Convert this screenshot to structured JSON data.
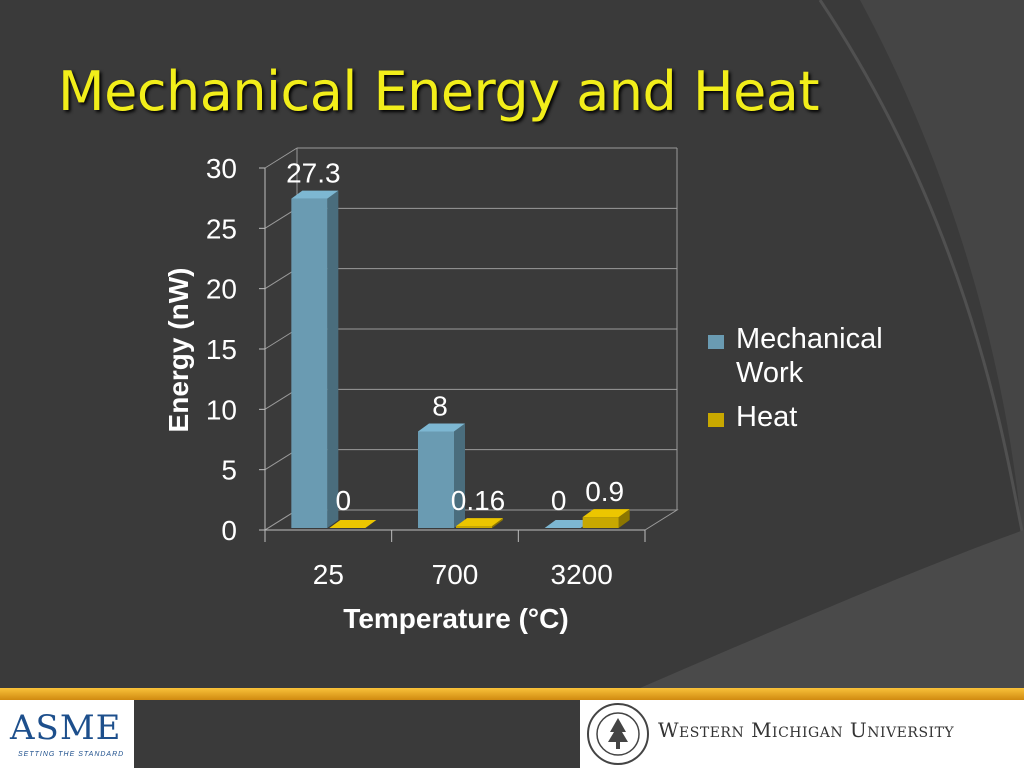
{
  "slide": {
    "title": "Mechanical Energy and Heat"
  },
  "colors": {
    "background": "#3a3a3a",
    "title": "#f2ee1a",
    "mechanical": "#6a9bb2",
    "heat": "#c8a800",
    "gridline": "#9a9a9a",
    "accent_band": "#e8a324"
  },
  "chart_data": {
    "type": "bar",
    "style": "3d-clustered-column",
    "categories": [
      "25",
      "700",
      "3200"
    ],
    "series": [
      {
        "name": "Mechanical Work",
        "values": [
          27.3,
          8,
          0
        ],
        "labels": [
          "27.3",
          "8",
          "0"
        ],
        "color": "#6a9bb2"
      },
      {
        "name": "Heat",
        "values": [
          0,
          0.16,
          0.9
        ],
        "labels": [
          "0",
          "0.16",
          "0.9"
        ],
        "color": "#c8a800"
      }
    ],
    "xlabel": "Temperature (°C)",
    "ylabel": "Energy (nW)",
    "ylim": [
      0,
      30
    ],
    "yticks": [
      0,
      5,
      10,
      15,
      20,
      25,
      30
    ],
    "grid": true,
    "legend_position": "right"
  },
  "legend": {
    "items": [
      {
        "label": "Mechanical Work",
        "color": "#6a9bb2"
      },
      {
        "label": "Heat",
        "color": "#c8a800"
      }
    ]
  },
  "footer": {
    "asme_logo": "ASME",
    "asme_tagline": "SETTING THE STANDARD",
    "university_seal": "WESTERN MICHIGAN UNIVERSITY 1903",
    "university_name": "Western Michigan University"
  }
}
